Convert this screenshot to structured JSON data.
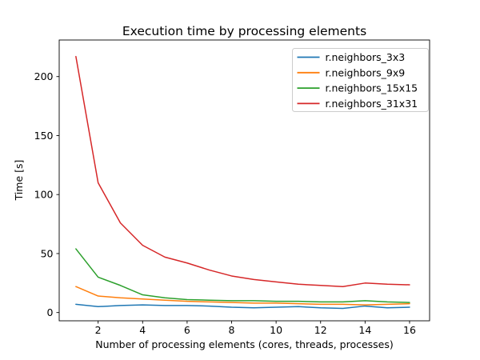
{
  "chart_data": {
    "type": "line",
    "title": "Execution time by processing elements",
    "xlabel": "Number of processing elements (cores, threads, processes)",
    "ylabel": "Time [s]",
    "grid": false,
    "x": [
      1,
      2,
      3,
      4,
      5,
      6,
      7,
      8,
      9,
      10,
      11,
      12,
      13,
      14,
      15,
      16
    ],
    "series": [
      {
        "name": "r.neighbors_3x3",
        "color": "#1f77b4",
        "values": [
          7,
          5,
          6,
          6.5,
          6,
          6,
          5.5,
          4.5,
          4,
          4.5,
          5,
          4,
          3.5,
          5.5,
          4,
          4.5
        ]
      },
      {
        "name": "r.neighbors_9x9",
        "color": "#ff7f0e",
        "values": [
          22,
          14,
          12.5,
          11.5,
          10.5,
          9.5,
          9,
          8.5,
          8,
          8,
          7.5,
          7,
          7,
          6.5,
          7,
          7.5
        ]
      },
      {
        "name": "r.neighbors_15x15",
        "color": "#2ca02c",
        "values": [
          54,
          30,
          23,
          15,
          12.5,
          11,
          10.5,
          10,
          10,
          9.5,
          9.5,
          9,
          9,
          10,
          9,
          8.5
        ]
      },
      {
        "name": "r.neighbors_31x31",
        "color": "#d62728",
        "values": [
          217,
          110,
          76,
          57,
          47,
          42,
          36,
          31,
          28,
          26,
          24,
          23,
          22,
          25,
          24,
          23.5
        ]
      }
    ],
    "xticks": [
      2,
      4,
      6,
      8,
      10,
      12,
      14,
      16
    ],
    "yticks": [
      0,
      50,
      100,
      150,
      200
    ],
    "xlim": [
      0.25,
      16.9
    ],
    "ylim": [
      -7,
      231
    ],
    "legend": {
      "location": "upper right"
    },
    "axis_color": "#000000",
    "legend_border_color": "#cccccc"
  }
}
